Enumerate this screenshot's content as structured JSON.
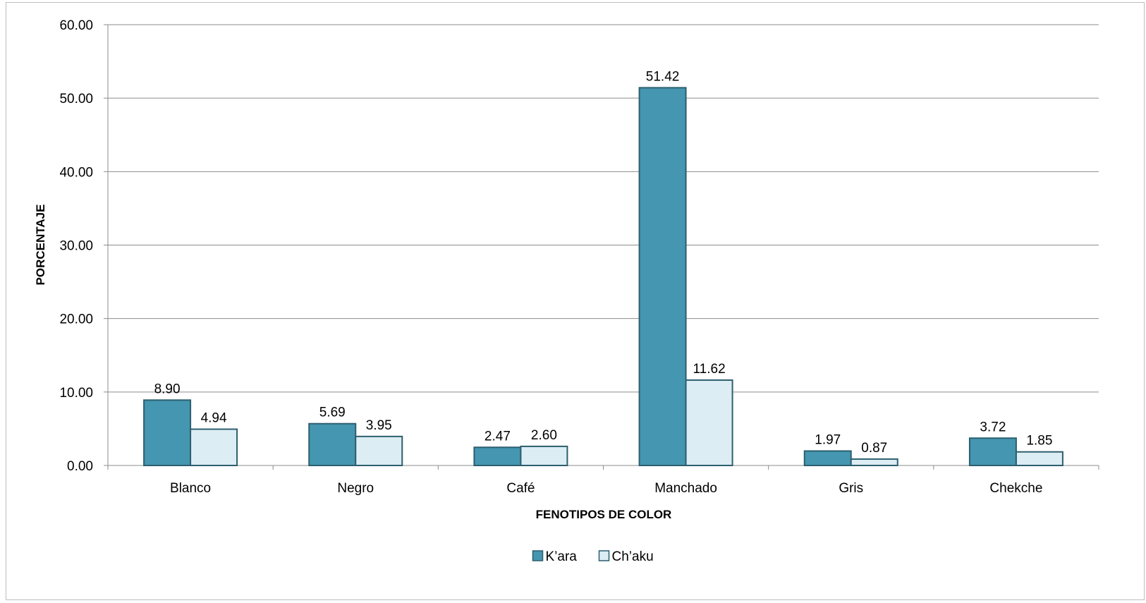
{
  "chart_data": {
    "type": "bar",
    "categories": [
      "Blanco",
      "Negro",
      "Café",
      "Manchado",
      "Gris",
      "Chekche"
    ],
    "series": [
      {
        "name": "K’ara",
        "values": [
          8.9,
          5.69,
          2.47,
          51.42,
          1.97,
          3.72
        ],
        "labels": [
          "8.90",
          "5.69",
          "2.47",
          "51.42",
          "1.97",
          "3.72"
        ],
        "fill": "#4596b0",
        "stroke": "#2c5f6f"
      },
      {
        "name": "Ch’aku",
        "values": [
          4.94,
          3.95,
          2.6,
          11.62,
          0.87,
          1.85
        ],
        "labels": [
          "4.94",
          "3.95",
          "2.60",
          "11.62",
          "0.87",
          "1.85"
        ],
        "fill": "#dcedf3",
        "stroke": "#2c5f6f"
      }
    ],
    "yticks": [
      "0.00",
      "10.00",
      "20.00",
      "30.00",
      "40.00",
      "50.00",
      "60.00"
    ],
    "ylim": [
      0,
      60
    ],
    "xlabel": "FENOTIPOS DE COLOR",
    "ylabel": "PORCENTAJE",
    "grid": true,
    "legend_position": "bottom"
  }
}
